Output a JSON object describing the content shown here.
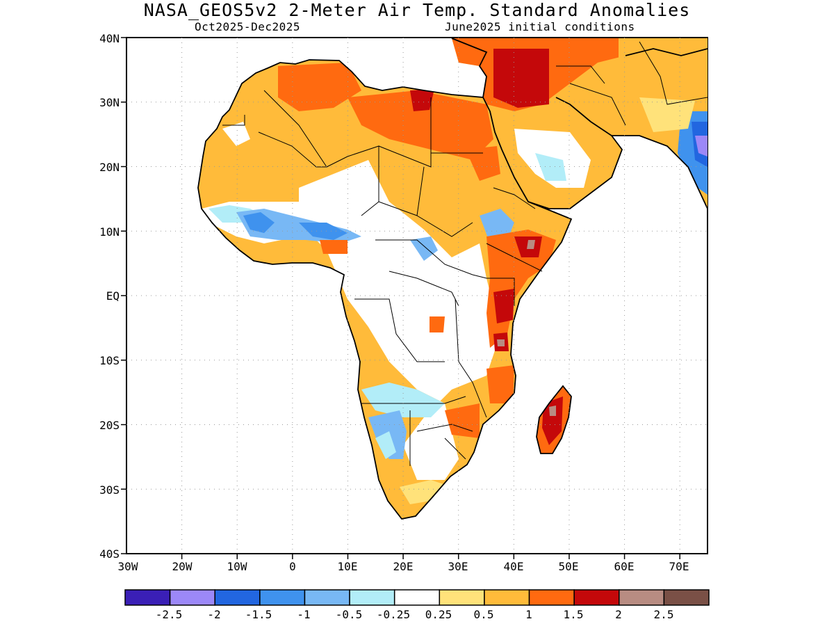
{
  "header": {
    "title": "NASA_GEOS5v2 2-Meter Air Temp. Standard Anomalies",
    "period": "Oct2025-Dec2025",
    "init": "June2025 initial conditions"
  },
  "map": {
    "lon_range": [
      -30,
      75
    ],
    "lat_range": [
      -40,
      40
    ],
    "lat_ticks": [
      "40N",
      "30N",
      "20N",
      "10N",
      "EQ",
      "10S",
      "20S",
      "30S",
      "40S"
    ],
    "lon_ticks": [
      "30W",
      "20W",
      "10W",
      "0",
      "10E",
      "20E",
      "30E",
      "40E",
      "50E",
      "60E",
      "70E"
    ],
    "grid": "dotted"
  },
  "colorbar": {
    "colors": [
      "#3a1fb6",
      "#9c88f8",
      "#2266e0",
      "#3f92ee",
      "#78b8f5",
      "#b2edf8",
      "#ffffff",
      "#ffe27a",
      "#ffbb3a",
      "#ff6a10",
      "#c4080a",
      "#b88c82",
      "#7a5046"
    ],
    "labels": [
      "-2.5",
      "-2",
      "-1.5",
      "-1",
      "-0.5",
      "-0.25",
      "0.25",
      "0.5",
      "1",
      "1.5",
      "2",
      "2.5"
    ]
  }
}
